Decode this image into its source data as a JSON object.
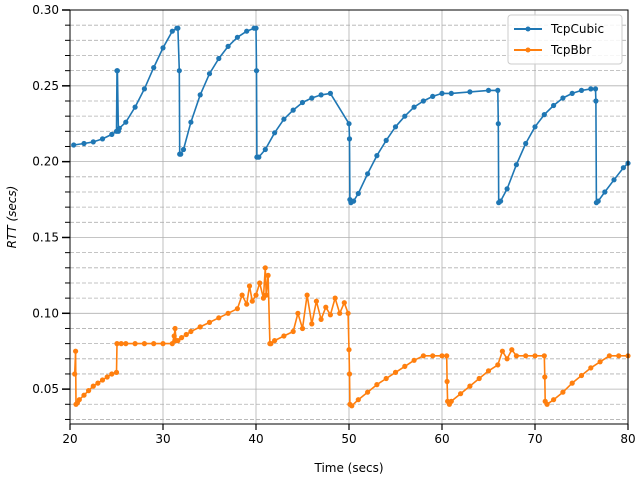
{
  "chart_data": {
    "type": "line",
    "title": "",
    "xlabel": "Time (secs)",
    "ylabel": "RTT (secs)",
    "xlim": [
      20,
      80
    ],
    "ylim": [
      0.027,
      0.3
    ],
    "x_ticks": [
      20,
      30,
      40,
      50,
      60,
      70,
      80
    ],
    "y_ticks": [
      0.05,
      0.1,
      0.15,
      0.2,
      0.25,
      0.3
    ],
    "x_tick_labels": [
      "20",
      "30",
      "40",
      "50",
      "60",
      "70",
      "80"
    ],
    "y_tick_labels": [
      "0.05",
      "0.10",
      "0.15",
      "0.20",
      "0.25",
      "0.30"
    ],
    "grid": "major solid, minor dashed",
    "legend_position": "top-right",
    "series": [
      {
        "name": "TcpCubic",
        "color": "#1f77b4",
        "x": [
          20.4,
          21.5,
          22.5,
          23.5,
          24.5,
          25.0,
          25.05,
          25.1,
          25.2,
          25.3,
          26,
          27,
          28,
          29,
          30,
          31,
          31.5,
          31.6,
          31.75,
          31.8,
          31.9,
          32.2,
          33,
          34,
          35,
          36,
          37,
          38,
          39,
          39.8,
          40.0,
          40.05,
          40.1,
          40.3,
          41,
          42,
          43,
          44,
          45,
          46,
          47,
          48,
          50.0,
          50.05,
          50.1,
          50.2,
          50.5,
          51,
          52,
          53,
          54,
          55,
          56,
          57,
          58,
          59,
          60,
          61,
          63,
          65,
          66.0,
          66.05,
          66.1,
          66.3,
          67,
          68,
          69,
          70,
          71,
          72,
          73,
          74,
          75,
          76,
          76.5,
          76.55,
          76.6,
          76.8,
          77.5,
          78.5,
          79.5,
          80
        ],
        "y": [
          0.211,
          0.212,
          0.213,
          0.215,
          0.218,
          0.22,
          0.26,
          0.26,
          0.22,
          0.222,
          0.226,
          0.236,
          0.248,
          0.262,
          0.275,
          0.286,
          0.288,
          0.288,
          0.26,
          0.205,
          0.205,
          0.208,
          0.226,
          0.244,
          0.258,
          0.268,
          0.276,
          0.282,
          0.286,
          0.288,
          0.288,
          0.26,
          0.203,
          0.203,
          0.208,
          0.219,
          0.228,
          0.234,
          0.239,
          0.242,
          0.244,
          0.245,
          0.225,
          0.215,
          0.175,
          0.173,
          0.174,
          0.179,
          0.192,
          0.204,
          0.214,
          0.223,
          0.23,
          0.236,
          0.24,
          0.243,
          0.245,
          0.245,
          0.246,
          0.247,
          0.247,
          0.225,
          0.173,
          0.174,
          0.182,
          0.198,
          0.212,
          0.223,
          0.231,
          0.237,
          0.242,
          0.245,
          0.247,
          0.248,
          0.248,
          0.24,
          0.173,
          0.174,
          0.18,
          0.188,
          0.196,
          0.199
        ]
      },
      {
        "name": "TcpBbr",
        "color": "#ff7f0e",
        "x": [
          20.5,
          20.6,
          20.65,
          20.8,
          21,
          21.5,
          22,
          22.5,
          23,
          23.5,
          24,
          24.5,
          25,
          25.05,
          25.5,
          26,
          27,
          28,
          29,
          30,
          31,
          31.2,
          31.3,
          31.4,
          31.6,
          32,
          32.5,
          33,
          34,
          35,
          36,
          37,
          38,
          38.5,
          39,
          39.3,
          39.6,
          40,
          40.4,
          40.8,
          41.0,
          41.1,
          41.3,
          41.5,
          41.6,
          42,
          43,
          44,
          44.5,
          45,
          45.5,
          46,
          46.5,
          47,
          47.5,
          48,
          48.5,
          49,
          49.5,
          49.9,
          50,
          50.05,
          50.1,
          50.3,
          51,
          52,
          53,
          54,
          55,
          56,
          57,
          58,
          59,
          60,
          60.5,
          60.55,
          60.6,
          60.8,
          61,
          62,
          63,
          64,
          65,
          66,
          66.5,
          67,
          67.5,
          68,
          69,
          70,
          71,
          71.05,
          71.1,
          71.3,
          72,
          73,
          74,
          75,
          76,
          77,
          78,
          79,
          80
        ],
        "y": [
          0.06,
          0.075,
          0.04,
          0.041,
          0.043,
          0.046,
          0.049,
          0.052,
          0.054,
          0.056,
          0.058,
          0.06,
          0.061,
          0.08,
          0.08,
          0.08,
          0.08,
          0.08,
          0.08,
          0.08,
          0.08,
          0.085,
          0.09,
          0.082,
          0.082,
          0.084,
          0.086,
          0.088,
          0.091,
          0.094,
          0.097,
          0.1,
          0.103,
          0.112,
          0.106,
          0.118,
          0.108,
          0.112,
          0.12,
          0.11,
          0.13,
          0.112,
          0.125,
          0.08,
          0.08,
          0.082,
          0.085,
          0.088,
          0.1,
          0.09,
          0.112,
          0.093,
          0.108,
          0.096,
          0.104,
          0.099,
          0.11,
          0.1,
          0.107,
          0.1,
          0.076,
          0.06,
          0.04,
          0.039,
          0.043,
          0.048,
          0.053,
          0.057,
          0.061,
          0.065,
          0.069,
          0.072,
          0.072,
          0.072,
          0.072,
          0.055,
          0.042,
          0.04,
          0.042,
          0.047,
          0.052,
          0.057,
          0.062,
          0.066,
          0.075,
          0.07,
          0.076,
          0.072,
          0.072,
          0.072,
          0.072,
          0.058,
          0.042,
          0.04,
          0.043,
          0.048,
          0.054,
          0.059,
          0.064,
          0.068,
          0.072,
          0.072,
          0.072
        ]
      }
    ]
  }
}
